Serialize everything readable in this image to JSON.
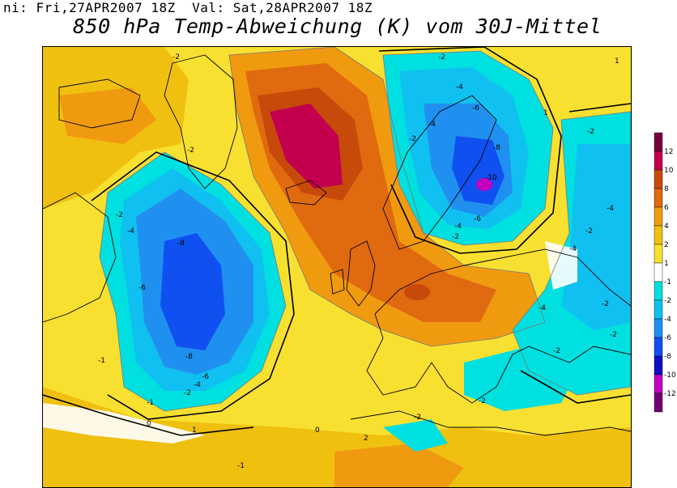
{
  "header": {
    "init_label": "ni:",
    "init_value": "Fri,27APR2007 18Z",
    "valid_label": "Val:",
    "valid_value": "Sat,28APR2007 18Z"
  },
  "title": "850 hPa Temp-Abweichung (K) vom 30J-Mittel",
  "colorbar": {
    "levels": [
      "12",
      "10",
      "8",
      "6",
      "4",
      "2",
      "1",
      "-1",
      "-2",
      "-4",
      "-6",
      "-8",
      "-10",
      "-12"
    ],
    "colors": [
      "#7a003c",
      "#c2004e",
      "#c84a0a",
      "#e06a10",
      "#f09a10",
      "#f0c010",
      "#f8e030",
      "#ffffff",
      "#00e0e0",
      "#10c0f0",
      "#2090f0",
      "#1050f0",
      "#1010c0",
      "#c000c0",
      "#700070"
    ]
  },
  "contour_labels": [
    {
      "text": "-2"
    },
    {
      "text": "-2"
    },
    {
      "text": "-2"
    },
    {
      "text": "-4"
    },
    {
      "text": "-6"
    },
    {
      "text": "-8"
    },
    {
      "text": "-10"
    },
    {
      "text": "-6"
    },
    {
      "text": "-4"
    },
    {
      "text": "-2"
    },
    {
      "text": "-2"
    },
    {
      "text": "-4"
    },
    {
      "text": "-8"
    },
    {
      "text": "-6"
    },
    {
      "text": "-8"
    },
    {
      "text": "-6"
    },
    {
      "text": "-4"
    },
    {
      "text": "-2"
    },
    {
      "text": "-4"
    },
    {
      "text": "-2"
    },
    {
      "text": "-4"
    },
    {
      "text": "-2"
    },
    {
      "text": "-4"
    },
    {
      "text": "-2"
    },
    {
      "text": "-2"
    },
    {
      "text": "-2"
    },
    {
      "text": "-2"
    },
    {
      "text": "-4"
    },
    {
      "text": "-2"
    },
    {
      "text": "-1"
    },
    {
      "text": "-1"
    },
    {
      "text": "0"
    },
    {
      "text": "1"
    },
    {
      "text": "1"
    },
    {
      "text": "1"
    },
    {
      "text": "-1"
    },
    {
      "text": "0"
    },
    {
      "text": "2"
    },
    {
      "text": "-2"
    }
  ]
}
